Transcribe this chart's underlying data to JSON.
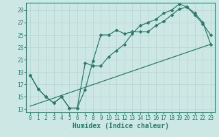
{
  "background_color": "#cde8e4",
  "grid_color": "#b8d8d4",
  "line_color": "#2a7a6a",
  "marker": "D",
  "markersize": 2.5,
  "linewidth": 0.9,
  "xlabel": "Humidex (Indice chaleur)",
  "xlabel_fontsize": 7,
  "tick_fontsize": 5.5,
  "xlim": [
    -0.5,
    23.5
  ],
  "ylim": [
    12.5,
    30.2
  ],
  "yticks": [
    13,
    15,
    17,
    19,
    21,
    23,
    25,
    27,
    29
  ],
  "xticks": [
    0,
    1,
    2,
    3,
    4,
    5,
    6,
    7,
    8,
    9,
    10,
    11,
    12,
    13,
    14,
    15,
    16,
    17,
    18,
    19,
    20,
    21,
    22,
    23
  ],
  "line1_x": [
    0,
    1,
    2,
    3,
    4,
    5,
    6,
    7,
    8,
    9,
    10,
    11,
    12,
    13,
    14,
    15,
    16,
    17,
    18,
    19,
    20,
    21,
    22,
    23
  ],
  "line1_y": [
    18.5,
    16.3,
    15.0,
    14.0,
    15.0,
    13.2,
    13.2,
    16.2,
    20.8,
    25.0,
    25.0,
    25.8,
    25.2,
    25.5,
    25.5,
    25.5,
    26.5,
    27.2,
    28.2,
    29.2,
    29.5,
    28.2,
    26.8,
    25.0
  ],
  "line2_x": [
    0,
    1,
    2,
    3,
    4,
    5,
    6,
    7,
    8,
    9,
    10,
    11,
    12,
    13,
    14,
    15,
    16,
    17,
    18,
    19,
    20,
    21,
    22,
    23
  ],
  "line2_y": [
    18.5,
    16.3,
    15.0,
    14.0,
    15.0,
    13.2,
    13.2,
    20.5,
    20.0,
    20.0,
    21.5,
    22.5,
    23.5,
    25.2,
    26.5,
    27.0,
    27.5,
    28.5,
    29.0,
    30.0,
    29.5,
    28.5,
    27.0,
    23.5
  ],
  "line3_x": [
    0,
    23
  ],
  "line3_y": [
    13.5,
    23.5
  ]
}
